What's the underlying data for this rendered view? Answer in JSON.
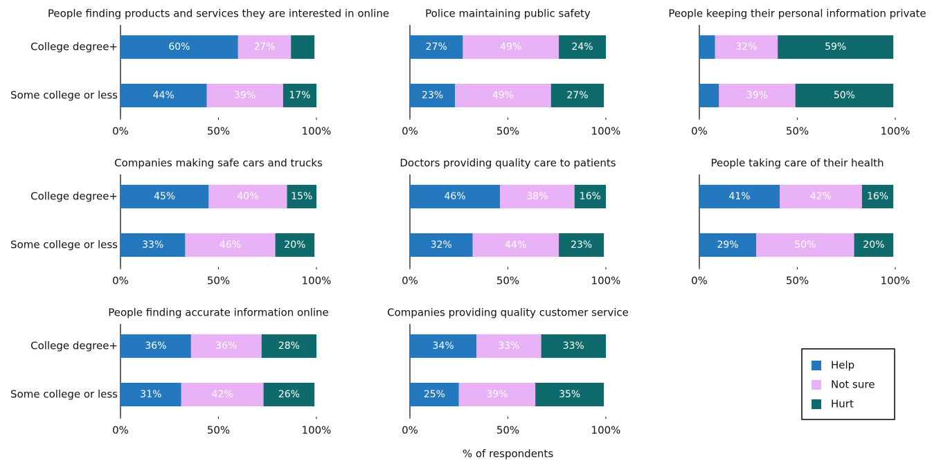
{
  "chart_data": [
    {
      "type": "stacked-bar-horizontal",
      "title": "People finding products and services they are interested in online",
      "categories": [
        "College degree+",
        "Some college or less"
      ],
      "series": [
        {
          "name": "Help",
          "color": "#2378be",
          "values": [
            60,
            44
          ],
          "value_labels": [
            "60%",
            "44%"
          ]
        },
        {
          "name": "Not sure",
          "color": "#e9b2f6",
          "values": [
            27,
            39
          ],
          "value_labels": [
            "27%",
            "39%"
          ]
        },
        {
          "name": "Hurt",
          "color": "#0f6b6b",
          "values": [
            12,
            17
          ],
          "value_labels": [
            null,
            "17%"
          ]
        }
      ],
      "xlim": [
        0,
        100
      ],
      "xticks": [
        {
          "value": 0,
          "label": "0%"
        },
        {
          "value": 50,
          "label": "50%"
        },
        {
          "value": 100,
          "label": "100%"
        }
      ]
    },
    {
      "type": "stacked-bar-horizontal",
      "title": "Police maintaining public safety",
      "series": [
        {
          "name": "Help",
          "color": "#2378be",
          "values": [
            27,
            23
          ],
          "value_labels": [
            "27%",
            "23%"
          ]
        },
        {
          "name": "Not sure",
          "color": "#e9b2f6",
          "values": [
            49,
            49
          ],
          "value_labels": [
            "49%",
            "49%"
          ]
        },
        {
          "name": "Hurt",
          "color": "#0f6b6b",
          "values": [
            24,
            27
          ],
          "value_labels": [
            "24%",
            "27%"
          ]
        }
      ],
      "xlim": [
        0,
        100
      ],
      "xticks": [
        {
          "value": 0,
          "label": "0%"
        },
        {
          "value": 50,
          "label": "50%"
        },
        {
          "value": 100,
          "label": "100%"
        }
      ]
    },
    {
      "type": "stacked-bar-horizontal",
      "title": "People keeping their personal information private",
      "series": [
        {
          "name": "Help",
          "color": "#2378be",
          "values": [
            8,
            10
          ],
          "value_labels": [
            null,
            null
          ]
        },
        {
          "name": "Not sure",
          "color": "#e9b2f6",
          "values": [
            32,
            39
          ],
          "value_labels": [
            "32%",
            "39%"
          ]
        },
        {
          "name": "Hurt",
          "color": "#0f6b6b",
          "values": [
            59,
            50
          ],
          "value_labels": [
            "59%",
            "50%"
          ]
        }
      ],
      "xlim": [
        0,
        100
      ],
      "xticks": [
        {
          "value": 0,
          "label": "0%"
        },
        {
          "value": 50,
          "label": "50%"
        },
        {
          "value": 100,
          "label": "100%"
        }
      ]
    },
    {
      "type": "stacked-bar-horizontal",
      "title": "Companies making safe cars and trucks",
      "categories": [
        "College degree+",
        "Some college or less"
      ],
      "series": [
        {
          "name": "Help",
          "color": "#2378be",
          "values": [
            45,
            33
          ],
          "value_labels": [
            "45%",
            "33%"
          ]
        },
        {
          "name": "Not sure",
          "color": "#e9b2f6",
          "values": [
            40,
            46
          ],
          "value_labels": [
            "40%",
            "46%"
          ]
        },
        {
          "name": "Hurt",
          "color": "#0f6b6b",
          "values": [
            15,
            20
          ],
          "value_labels": [
            "15%",
            "20%"
          ]
        }
      ],
      "xlim": [
        0,
        100
      ],
      "xticks": [
        {
          "value": 0,
          "label": "0%"
        },
        {
          "value": 50,
          "label": "50%"
        },
        {
          "value": 100,
          "label": "100%"
        }
      ]
    },
    {
      "type": "stacked-bar-horizontal",
      "title": "Doctors providing quality care to patients",
      "series": [
        {
          "name": "Help",
          "color": "#2378be",
          "values": [
            46,
            32
          ],
          "value_labels": [
            "46%",
            "32%"
          ]
        },
        {
          "name": "Not sure",
          "color": "#e9b2f6",
          "values": [
            38,
            44
          ],
          "value_labels": [
            "38%",
            "44%"
          ]
        },
        {
          "name": "Hurt",
          "color": "#0f6b6b",
          "values": [
            16,
            23
          ],
          "value_labels": [
            "16%",
            "23%"
          ]
        }
      ],
      "xlim": [
        0,
        100
      ],
      "xticks": [
        {
          "value": 0,
          "label": "0%"
        },
        {
          "value": 50,
          "label": "50%"
        },
        {
          "value": 100,
          "label": "100%"
        }
      ]
    },
    {
      "type": "stacked-bar-horizontal",
      "title": "People taking care of their health",
      "series": [
        {
          "name": "Help",
          "color": "#2378be",
          "values": [
            41,
            29
          ],
          "value_labels": [
            "41%",
            "29%"
          ]
        },
        {
          "name": "Not sure",
          "color": "#e9b2f6",
          "values": [
            42,
            50
          ],
          "value_labels": [
            "42%",
            "50%"
          ]
        },
        {
          "name": "Hurt",
          "color": "#0f6b6b",
          "values": [
            16,
            20
          ],
          "value_labels": [
            "16%",
            "20%"
          ]
        }
      ],
      "xlim": [
        0,
        100
      ],
      "xticks": [
        {
          "value": 0,
          "label": "0%"
        },
        {
          "value": 50,
          "label": "50%"
        },
        {
          "value": 100,
          "label": "100%"
        }
      ]
    },
    {
      "type": "stacked-bar-horizontal",
      "title": "People finding accurate information online",
      "categories": [
        "College degree+",
        "Some college or less"
      ],
      "series": [
        {
          "name": "Help",
          "color": "#2378be",
          "values": [
            36,
            31
          ],
          "value_labels": [
            "36%",
            "31%"
          ]
        },
        {
          "name": "Not sure",
          "color": "#e9b2f6",
          "values": [
            36,
            42
          ],
          "value_labels": [
            "36%",
            "42%"
          ]
        },
        {
          "name": "Hurt",
          "color": "#0f6b6b",
          "values": [
            28,
            26
          ],
          "value_labels": [
            "28%",
            "26%"
          ]
        }
      ],
      "xlim": [
        0,
        100
      ],
      "xticks": [
        {
          "value": 0,
          "label": "0%"
        },
        {
          "value": 50,
          "label": "50%"
        },
        {
          "value": 100,
          "label": "100%"
        }
      ]
    },
    {
      "type": "stacked-bar-horizontal",
      "title": "Companies providing quality customer service",
      "xlabel": "% of respondents",
      "series": [
        {
          "name": "Help",
          "color": "#2378be",
          "values": [
            34,
            25
          ],
          "value_labels": [
            "34%",
            "25%"
          ]
        },
        {
          "name": "Not sure",
          "color": "#e9b2f6",
          "values": [
            33,
            39
          ],
          "value_labels": [
            "33%",
            "39%"
          ]
        },
        {
          "name": "Hurt",
          "color": "#0f6b6b",
          "values": [
            33,
            35
          ],
          "value_labels": [
            "33%",
            "35%"
          ]
        }
      ],
      "xlim": [
        0,
        100
      ],
      "xticks": [
        {
          "value": 0,
          "label": "0%"
        },
        {
          "value": 50,
          "label": "50%"
        },
        {
          "value": 100,
          "label": "100%"
        }
      ]
    }
  ]
}
